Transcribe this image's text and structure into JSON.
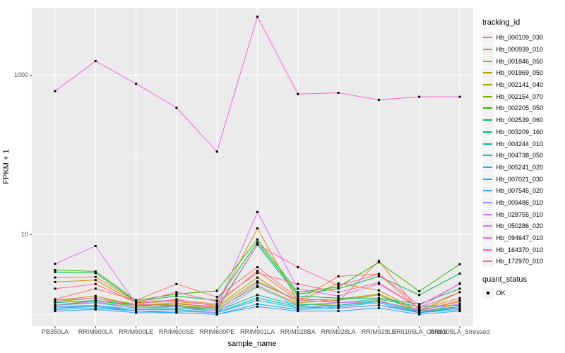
{
  "figure": {
    "y_axis_title": "FPKM + 1",
    "x_axis_title": "sample_name"
  },
  "legend": {
    "tracking_title": "tracking_id",
    "quant_title": "quant_status",
    "quant_label": "OK"
  },
  "chart_data": {
    "type": "line",
    "title": "",
    "xlabel": "sample_name",
    "ylabel": "FPKM + 1",
    "y_scale": "log10",
    "y_breaks": [
      1000,
      10
    ],
    "y_break_labels": [
      "1000",
      "10"
    ],
    "y_minor_breaks": [
      100,
      1
    ],
    "y_domain_log10": [
      -0.148,
      3.845
    ],
    "panel_bg": "#EBEBEB",
    "grid_color": "#FFFFFF",
    "tick_color": "#333333",
    "marker": {
      "shape": "filled-square",
      "color": "#000000",
      "legend_label": "OK"
    },
    "legend_position": "right",
    "categories": [
      "PB350LA",
      "RRIM600LA",
      "RRIM600LE",
      "RRIM600SE",
      "RRIM600PE",
      "RRIM901LA",
      "RRIM928BA",
      "RRIM928LA",
      "RRIM928LE",
      "RRII105LA_Control",
      "RRII105LA_Stressed"
    ],
    "series": [
      {
        "name": "Hb_000109_030",
        "color": "#F8766D",
        "values": [
          1.55,
          2.1,
          1.5,
          2.4,
          1.65,
          3.9,
          1.6,
          1.45,
          4.7,
          1.1,
          1.5
        ]
      },
      {
        "name": "Hb_000939_010",
        "color": "#EA8331",
        "values": [
          2.9,
          2.95,
          1.45,
          1.5,
          1.35,
          3.5,
          1.5,
          3.0,
          3.2,
          1.15,
          1.6
        ]
      },
      {
        "name": "Hb_001846_050",
        "color": "#D89000",
        "values": [
          2.55,
          2.7,
          1.4,
          1.45,
          1.3,
          12.0,
          1.45,
          2.45,
          2.0,
          1.1,
          1.45
        ]
      },
      {
        "name": "Hb_001969_050",
        "color": "#C09B00",
        "values": [
          1.5,
          1.7,
          1.3,
          1.35,
          1.25,
          2.9,
          1.4,
          1.5,
          1.75,
          1.05,
          1.35
        ]
      },
      {
        "name": "Hb_002141_040",
        "color": "#A3A500",
        "values": [
          1.45,
          1.6,
          1.35,
          1.3,
          1.2,
          2.6,
          1.5,
          1.55,
          1.8,
          1.1,
          1.9
        ]
      },
      {
        "name": "Hb_002154_070",
        "color": "#7CAE00",
        "values": [
          1.3,
          1.5,
          1.25,
          1.3,
          1.15,
          2.3,
          1.35,
          1.3,
          1.5,
          1.05,
          1.25
        ]
      },
      {
        "name": "Hb_002205_050",
        "color": "#39B600",
        "values": [
          3.6,
          3.45,
          1.5,
          1.8,
          1.97,
          8.7,
          1.9,
          2.2,
          4.5,
          1.95,
          4.25
        ]
      },
      {
        "name": "Hb_002539_060",
        "color": "#00BB4E",
        "values": [
          3.4,
          3.3,
          1.45,
          1.7,
          1.5,
          8.0,
          1.8,
          2.1,
          3.0,
          1.75,
          3.25
        ]
      },
      {
        "name": "Hb_003209_160",
        "color": "#00BF7D",
        "values": [
          1.4,
          1.5,
          1.3,
          1.25,
          1.15,
          7.5,
          1.7,
          1.6,
          1.6,
          1.35,
          2.1
        ]
      },
      {
        "name": "Hb_004244_010",
        "color": "#00C1A3",
        "values": [
          1.3,
          1.4,
          1.2,
          1.2,
          1.1,
          1.75,
          1.3,
          1.4,
          1.55,
          1.25,
          1.3
        ]
      },
      {
        "name": "Hb_004738_050",
        "color": "#00BFC4",
        "values": [
          1.25,
          1.3,
          1.15,
          1.15,
          1.05,
          1.6,
          1.25,
          1.3,
          1.45,
          1.1,
          1.25
        ]
      },
      {
        "name": "Hb_005241_020",
        "color": "#00BAE0",
        "values": [
          1.2,
          1.25,
          1.1,
          1.1,
          1.05,
          1.5,
          1.2,
          1.25,
          1.4,
          1.05,
          1.2
        ]
      },
      {
        "name": "Hb_007021_030",
        "color": "#00B0F6",
        "values": [
          1.15,
          1.2,
          1.1,
          1.05,
          1.0,
          1.35,
          1.15,
          1.2,
          1.3,
          1.05,
          1.15
        ]
      },
      {
        "name": "Hb_007545_020",
        "color": "#35A2FF",
        "values": [
          1.1,
          1.15,
          1.05,
          1.05,
          1.0,
          1.25,
          1.1,
          1.1,
          1.2,
          1.0,
          1.1
        ]
      },
      {
        "name": "Hb_009486_010",
        "color": "#9590FF",
        "values": [
          1.2,
          1.3,
          1.1,
          1.1,
          1.05,
          2.2,
          1.3,
          1.2,
          1.3,
          1.1,
          1.2
        ]
      },
      {
        "name": "Hb_028755_010",
        "color": "#C77CFF",
        "values": [
          1.3,
          1.45,
          1.2,
          1.25,
          1.1,
          2.5,
          1.5,
          1.4,
          1.45,
          1.15,
          1.35
        ]
      },
      {
        "name": "Hb_050286_020",
        "color": "#E76BF3",
        "values": [
          4.3,
          7.2,
          1.35,
          1.55,
          1.25,
          19.2,
          2.1,
          1.7,
          2.4,
          1.2,
          2.45
        ]
      },
      {
        "name": "Hb_094647_010",
        "color": "#FA62DB",
        "values": [
          630,
          1500,
          780,
          390,
          110,
          5400,
          580,
          600,
          490,
          535,
          535
        ]
      },
      {
        "name": "Hb_164370_010",
        "color": "#FF62BC",
        "values": [
          1.5,
          1.6,
          1.3,
          1.4,
          1.2,
          7.5,
          3.9,
          2.3,
          3.2,
          1.3,
          2.4
        ]
      },
      {
        "name": "Hb_172970_010",
        "color": "#FF6A98",
        "values": [
          2.1,
          2.4,
          1.4,
          1.9,
          1.45,
          3.3,
          2.4,
          1.9,
          2.5,
          1.2,
          1.9
        ]
      }
    ]
  }
}
